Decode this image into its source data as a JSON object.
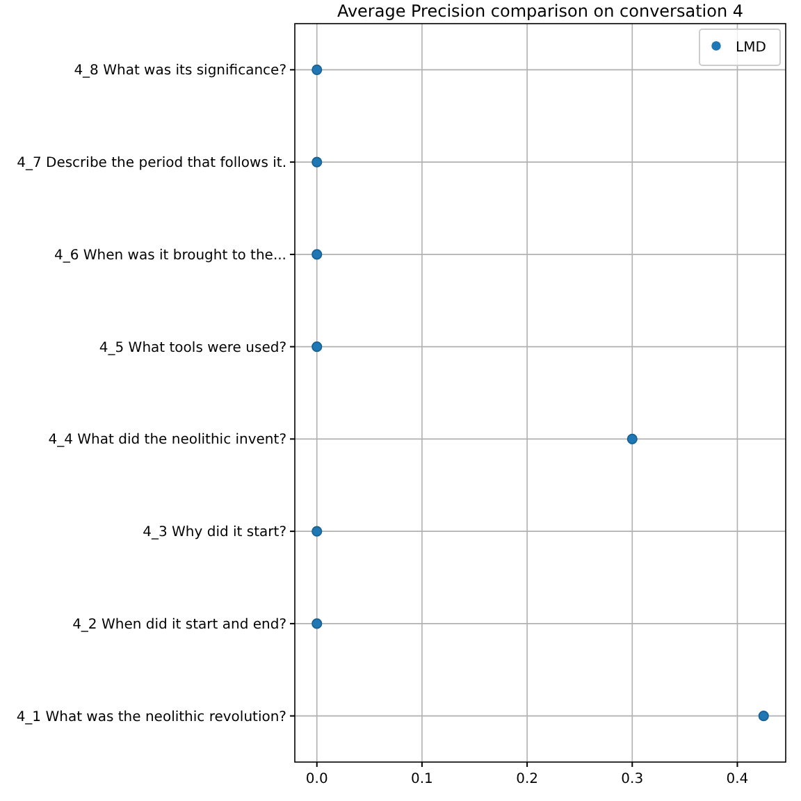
{
  "chart_data": {
    "type": "scatter",
    "title": "Average Precision comparison on conversation 4",
    "orientation": "horizontal",
    "categories": [
      "4_8 What was its significance?",
      "4_7 Describe the period that follows it.",
      "4_6 When was it brought to the...",
      "4_5 What tools were used?",
      "4_4 What did the neolithic invent?",
      "4_3 Why did it start?",
      "4_2 When did it start and end?",
      "4_1 What was the neolithic revolution?"
    ],
    "series": [
      {
        "name": "LMD",
        "color": "#1f77b4",
        "values": [
          0,
          0,
          0,
          0,
          0.3,
          0,
          0,
          0.425
        ]
      }
    ],
    "xlim": [
      -0.021,
      0.446
    ],
    "xticks": [
      {
        "value": 0,
        "label": "0.0"
      },
      {
        "value": 0.1,
        "label": "0.1"
      },
      {
        "value": 0.2,
        "label": "0.2"
      },
      {
        "value": 0.3,
        "label": "0.3"
      },
      {
        "value": 0.4,
        "label": "0.4"
      }
    ],
    "grid": true,
    "legend": "top right",
    "marker": "circle"
  }
}
